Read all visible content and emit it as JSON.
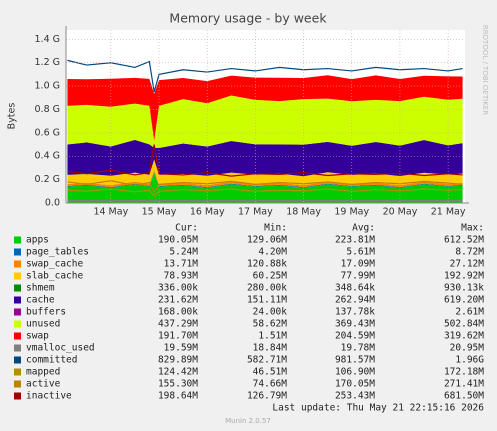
{
  "chart_data": {
    "type": "area",
    "title": "Memory usage - by week",
    "y_label": "Bytes",
    "side_note": "RRDTOOL / TOBI OETIKER",
    "stat_headers": [
      "Cur:",
      "Min:",
      "Avg:",
      "Max:"
    ],
    "last_update": "Last update: Thu May 21 22:15:16 2026",
    "footer": "Munin 2.0.57",
    "grid": true,
    "xlim": [
      13.07,
      21.35
    ],
    "xticks": [
      {
        "value": 14,
        "label": "14 May"
      },
      {
        "value": 15,
        "label": "15 May"
      },
      {
        "value": 16,
        "label": "16 May"
      },
      {
        "value": 17,
        "label": "17 May"
      },
      {
        "value": 18,
        "label": "18 May"
      },
      {
        "value": 19,
        "label": "19 May"
      },
      {
        "value": 20,
        "label": "20 May"
      },
      {
        "value": 21,
        "label": "21 May"
      }
    ],
    "ylim": [
      0,
      1480000000
    ],
    "yticks": [
      {
        "value": 0,
        "label": "0.0"
      },
      {
        "value": 200000000,
        "label": "0.2 G"
      },
      {
        "value": 400000000,
        "label": "0.4 G"
      },
      {
        "value": 600000000,
        "label": "0.6 G"
      },
      {
        "value": 800000000,
        "label": "0.8 G"
      },
      {
        "value": 1000000000,
        "label": "1.0 G"
      },
      {
        "value": 1200000000,
        "label": "1.2 G"
      },
      {
        "value": 1400000000,
        "label": "1.4 G"
      }
    ],
    "x": [
      13.1,
      13.5,
      14.0,
      14.5,
      14.8,
      14.9,
      15.0,
      15.5,
      16.0,
      16.5,
      17.0,
      17.5,
      18.0,
      18.5,
      19.0,
      19.5,
      20.0,
      20.5,
      21.0,
      21.3
    ],
    "series": [
      {
        "name": "apps",
        "color": "#00cc00",
        "stack": true,
        "stats": [
          "190.05M",
          "129.06M",
          "223.81M",
          "612.52M"
        ],
        "values": [
          140000000,
          150000000,
          130000000,
          160000000,
          140000000,
          260000000,
          140000000,
          150000000,
          130000000,
          160000000,
          140000000,
          150000000,
          130000000,
          160000000,
          140000000,
          150000000,
          130000000,
          160000000,
          140000000,
          150000000
        ]
      },
      {
        "name": "page_tables",
        "color": "#0066b3",
        "stack": true,
        "stats": [
          "5.24M",
          "4.20M",
          "5.61M",
          "8.72M"
        ],
        "values": [
          5600000,
          5600000,
          5600000,
          5600000,
          5600000,
          5600000,
          5600000,
          5600000,
          5600000,
          5600000,
          5600000,
          5600000,
          5600000,
          5600000,
          5600000,
          5600000,
          5600000,
          5600000,
          5600000,
          5600000
        ]
      },
      {
        "name": "swap_cache",
        "color": "#ff8000",
        "stack": true,
        "stats": [
          "13.71M",
          "120.88k",
          "17.09M",
          "27.12M"
        ],
        "values": [
          17000000,
          17000000,
          17000000,
          17000000,
          17000000,
          17000000,
          17000000,
          17000000,
          17000000,
          17000000,
          17000000,
          17000000,
          17000000,
          17000000,
          17000000,
          17000000,
          17000000,
          17000000,
          17000000,
          17000000
        ]
      },
      {
        "name": "slab_cache",
        "color": "#ffcc00",
        "stack": true,
        "stats": [
          "78.93M",
          "60.25M",
          "77.99M",
          "192.92M"
        ],
        "values": [
          78000000,
          76000000,
          80000000,
          77000000,
          79000000,
          90000000,
          78000000,
          76000000,
          80000000,
          77000000,
          79000000,
          78000000,
          76000000,
          80000000,
          77000000,
          79000000,
          78000000,
          76000000,
          80000000,
          79000000
        ]
      },
      {
        "name": "shmem",
        "color": "#008f00",
        "stack": true,
        "stats": [
          "336.00k",
          "280.00k",
          "348.64k",
          "930.13k"
        ],
        "values": [
          340000,
          340000,
          340000,
          340000,
          340000,
          340000,
          340000,
          340000,
          340000,
          340000,
          340000,
          340000,
          340000,
          340000,
          340000,
          340000,
          340000,
          340000,
          340000,
          340000
        ]
      },
      {
        "name": "cache",
        "color": "#330099",
        "stack": true,
        "stats": [
          "231.62M",
          "151.11M",
          "262.94M",
          "619.20M"
        ],
        "values": [
          260000000,
          270000000,
          250000000,
          280000000,
          260000000,
          100000000,
          230000000,
          260000000,
          250000000,
          270000000,
          260000000,
          250000000,
          270000000,
          260000000,
          250000000,
          270000000,
          260000000,
          280000000,
          250000000,
          260000000
        ]
      },
      {
        "name": "buffers",
        "color": "#990099",
        "stack": true,
        "stats": [
          "168.00k",
          "24.00k",
          "137.78k",
          "2.61M"
        ],
        "values": [
          140000,
          140000,
          140000,
          140000,
          140000,
          140000,
          140000,
          140000,
          140000,
          140000,
          140000,
          140000,
          140000,
          140000,
          140000,
          140000,
          140000,
          140000,
          140000,
          140000
        ]
      },
      {
        "name": "unused",
        "color": "#ccff00",
        "stack": true,
        "stats": [
          "437.29M",
          "58.62M",
          "369.43M",
          "502.84M"
        ],
        "values": [
          330000000,
          320000000,
          340000000,
          310000000,
          330000000,
          60000000,
          360000000,
          380000000,
          370000000,
          390000000,
          380000000,
          370000000,
          390000000,
          370000000,
          380000000,
          360000000,
          380000000,
          370000000,
          390000000,
          380000000
        ]
      },
      {
        "name": "swap",
        "color": "#ff0000",
        "stack": true,
        "stats": [
          "191.70M",
          "1.51M",
          "204.59M",
          "319.62M"
        ],
        "values": [
          230000000,
          220000000,
          240000000,
          220000000,
          230000000,
          400000000,
          220000000,
          180000000,
          190000000,
          170000000,
          190000000,
          200000000,
          180000000,
          200000000,
          190000000,
          210000000,
          190000000,
          180000000,
          200000000,
          190000000
        ]
      },
      {
        "name": "vmalloc_used",
        "color": "#808080",
        "stack": false,
        "stats": [
          "19.59M",
          "18.84M",
          "19.78M",
          "20.95M"
        ],
        "values": [
          20000000,
          20000000,
          20000000,
          20000000,
          20000000,
          20000000,
          20000000,
          20000000,
          20000000,
          20000000,
          20000000,
          20000000,
          20000000,
          20000000,
          20000000,
          20000000,
          20000000,
          20000000,
          20000000,
          20000000
        ]
      },
      {
        "name": "committed",
        "color": "#00487d",
        "stack": false,
        "stats": [
          "829.89M",
          "582.71M",
          "981.57M",
          "1.96G"
        ],
        "values": [
          1220000000,
          1180000000,
          1200000000,
          1160000000,
          1210000000,
          950000000,
          1100000000,
          1140000000,
          1120000000,
          1150000000,
          1130000000,
          1160000000,
          1140000000,
          1150000000,
          1130000000,
          1160000000,
          1140000000,
          1150000000,
          1130000000,
          1150000000
        ]
      },
      {
        "name": "mapped",
        "color": "#b38f00",
        "stack": false,
        "stats": [
          "124.42M",
          "46.51M",
          "106.90M",
          "172.18M"
        ],
        "values": [
          110000000,
          100000000,
          120000000,
          95000000,
          110000000,
          60000000,
          100000000,
          115000000,
          105000000,
          120000000,
          100000000,
          110000000,
          105000000,
          120000000,
          100000000,
          115000000,
          105000000,
          120000000,
          110000000,
          115000000
        ]
      },
      {
        "name": "active",
        "color": "#c08000",
        "stack": false,
        "stats": [
          "155.30M",
          "74.66M",
          "170.05M",
          "271.41M"
        ],
        "values": [
          180000000,
          160000000,
          190000000,
          150000000,
          175000000,
          90000000,
          160000000,
          175000000,
          165000000,
          185000000,
          160000000,
          175000000,
          165000000,
          180000000,
          160000000,
          175000000,
          165000000,
          185000000,
          170000000,
          160000000
        ]
      },
      {
        "name": "inactive",
        "color": "#a00000",
        "stack": false,
        "stats": [
          "198.64M",
          "126.79M",
          "253.43M",
          "681.50M"
        ],
        "values": [
          270000000,
          250000000,
          280000000,
          240000000,
          260000000,
          500000000,
          250000000,
          240000000,
          260000000,
          230000000,
          250000000,
          245000000,
          260000000,
          235000000,
          250000000,
          245000000,
          255000000,
          235000000,
          250000000,
          240000000
        ]
      }
    ]
  }
}
